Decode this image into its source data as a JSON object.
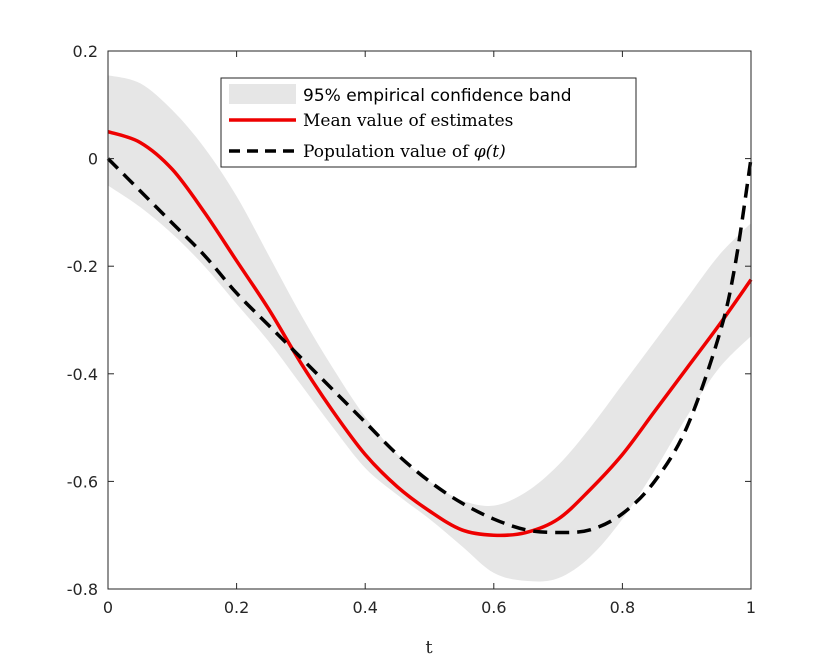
{
  "chart_data": {
    "type": "line",
    "xlabel": "t",
    "ylabel": "",
    "xlim": [
      0,
      1
    ],
    "ylim": [
      -0.8,
      0.2
    ],
    "xticks": [
      0,
      0.2,
      0.4,
      0.6,
      0.8,
      1
    ],
    "xtick_labels": [
      "0",
      "0.2",
      "0.4",
      "0.6",
      "0.8",
      "1"
    ],
    "yticks": [
      0.2,
      0,
      -0.2,
      -0.4,
      -0.6,
      -0.8
    ],
    "ytick_labels": [
      "0.2",
      "0",
      "-0.2",
      "-0.4",
      "-0.6",
      "-0.8"
    ],
    "grid": false,
    "legend_position": "top-center",
    "band": {
      "name": "95% empirical confidence band",
      "color": "#e6e6e6",
      "x": [
        0,
        0.05,
        0.1,
        0.15,
        0.2,
        0.25,
        0.3,
        0.35,
        0.4,
        0.45,
        0.5,
        0.55,
        0.6,
        0.65,
        0.7,
        0.75,
        0.8,
        0.85,
        0.9,
        0.95,
        1.0
      ],
      "upper": [
        0.155,
        0.14,
        0.09,
        0.02,
        -0.07,
        -0.18,
        -0.29,
        -0.39,
        -0.48,
        -0.55,
        -0.6,
        -0.635,
        -0.645,
        -0.62,
        -0.57,
        -0.5,
        -0.42,
        -0.34,
        -0.26,
        -0.18,
        -0.12
      ],
      "lower": [
        -0.05,
        -0.09,
        -0.14,
        -0.2,
        -0.27,
        -0.34,
        -0.42,
        -0.5,
        -0.575,
        -0.625,
        -0.67,
        -0.72,
        -0.77,
        -0.785,
        -0.78,
        -0.74,
        -0.67,
        -0.58,
        -0.48,
        -0.39,
        -0.33
      ]
    },
    "series": [
      {
        "name": "Mean value of estimates",
        "color": "#ee0000",
        "style": "solid",
        "x": [
          0,
          0.05,
          0.1,
          0.15,
          0.2,
          0.25,
          0.3,
          0.35,
          0.4,
          0.45,
          0.5,
          0.55,
          0.6,
          0.65,
          0.7,
          0.75,
          0.8,
          0.85,
          0.9,
          0.95,
          1.0
        ],
        "values": [
          0.05,
          0.03,
          -0.02,
          -0.1,
          -0.19,
          -0.28,
          -0.38,
          -0.47,
          -0.55,
          -0.61,
          -0.655,
          -0.69,
          -0.7,
          -0.695,
          -0.67,
          -0.615,
          -0.55,
          -0.47,
          -0.39,
          -0.31,
          -0.225
        ]
      },
      {
        "name": "Population value of φ(t)",
        "color": "#000000",
        "style": "dashed",
        "x": [
          0,
          0.05,
          0.1,
          0.15,
          0.2,
          0.25,
          0.3,
          0.35,
          0.4,
          0.45,
          0.5,
          0.55,
          0.6,
          0.65,
          0.7,
          0.75,
          0.8,
          0.85,
          0.9,
          0.95,
          0.975,
          1.0
        ],
        "values": [
          0.0,
          -0.06,
          -0.12,
          -0.18,
          -0.25,
          -0.31,
          -0.37,
          -0.43,
          -0.49,
          -0.55,
          -0.6,
          -0.64,
          -0.67,
          -0.69,
          -0.695,
          -0.69,
          -0.66,
          -0.6,
          -0.5,
          -0.33,
          -0.2,
          0.0
        ]
      }
    ],
    "legend": [
      {
        "label": "95% empirical confidence band",
        "kind": "band"
      },
      {
        "label": "Mean value of estimates",
        "kind": "solid"
      },
      {
        "label": "Population value of ",
        "math": "φ(t)",
        "kind": "dashed"
      }
    ]
  }
}
